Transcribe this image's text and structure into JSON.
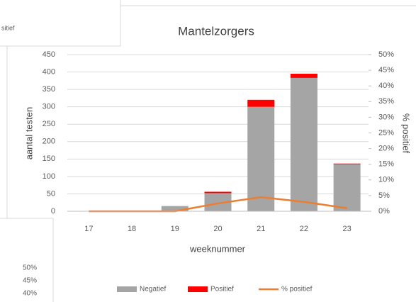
{
  "chart_data": {
    "type": "bar",
    "title": "Mantelzorgers",
    "x_label": "weeknummer",
    "y_label": "aantal testen",
    "y2_label": "% positief",
    "categories": [
      "17",
      "18",
      "19",
      "20",
      "21",
      "22",
      "23"
    ],
    "series": [
      {
        "name": "Negatief",
        "color": "#a5a5a5",
        "stack": true,
        "values": [
          0,
          0,
          15,
          52,
          300,
          383,
          135
        ]
      },
      {
        "name": "Positief",
        "color": "#ff0000",
        "stack": true,
        "values": [
          0,
          0,
          0,
          4,
          20,
          12,
          2
        ]
      },
      {
        "name": "% positief",
        "color": "#ed7d31",
        "type": "line",
        "axis": "y2",
        "values": [
          0,
          0,
          0,
          2.5,
          4.5,
          3,
          1
        ]
      }
    ],
    "ylim": [
      0,
      450
    ],
    "yticks": [
      0,
      50,
      100,
      150,
      200,
      250,
      300,
      350,
      400,
      450
    ],
    "y2lim": [
      0,
      50
    ],
    "y2ticks": [
      {
        "value": 0,
        "label": "0%"
      },
      {
        "value": 5,
        "label": "5%"
      },
      {
        "value": 10,
        "label": "10%"
      },
      {
        "value": 15,
        "label": "15%"
      },
      {
        "value": 20,
        "label": "20%"
      },
      {
        "value": 25,
        "label": "25%"
      },
      {
        "value": 30,
        "label": "30%"
      },
      {
        "value": 35,
        "label": "35%"
      },
      {
        "value": 40,
        "label": "40%"
      },
      {
        "value": 45,
        "label": "45%"
      },
      {
        "value": 50,
        "label": "50%"
      }
    ],
    "grid": true,
    "legend": "bottom"
  },
  "fragments": {
    "top_left_text": "sitief",
    "bottom_left_labels": [
      "50%",
      "45%",
      "40%"
    ]
  }
}
